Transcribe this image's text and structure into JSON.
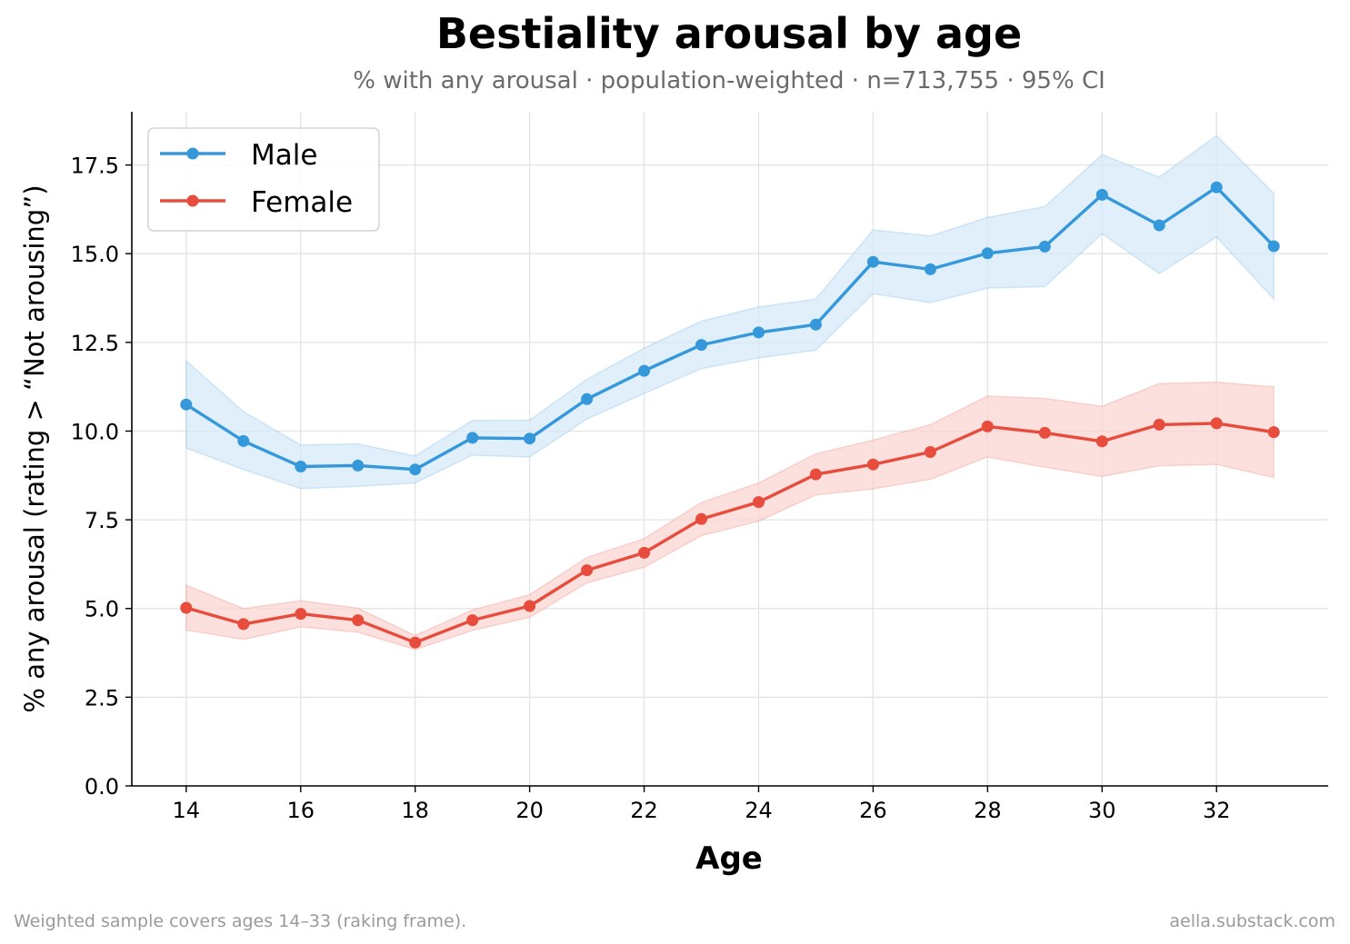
{
  "chart_data": {
    "type": "line",
    "title": "Bestiality arousal by age",
    "subtitle": "% with any arousal · population-weighted · n=713,755 · 95% CI",
    "xlabel": "Age",
    "ylabel": "% any arousal (rating > “Not arousing”)",
    "xlim": [
      13.05,
      33.95
    ],
    "ylim": [
      0,
      19
    ],
    "x_ticks": [
      14,
      16,
      18,
      20,
      22,
      24,
      26,
      28,
      30,
      32
    ],
    "x_tick_labels": [
      "14",
      "16",
      "18",
      "20",
      "22",
      "24",
      "26",
      "28",
      "30",
      "32"
    ],
    "y_ticks": [
      0,
      2.5,
      5,
      7.5,
      10,
      12.5,
      15,
      17.5
    ],
    "y_tick_labels": [
      "0.0",
      "2.5",
      "5.0",
      "7.5",
      "10.0",
      "12.5",
      "15.0",
      "17.5"
    ],
    "grid": true,
    "legend_position": "top-left",
    "x": [
      14,
      15,
      16,
      17,
      18,
      19,
      20,
      21,
      22,
      23,
      24,
      25,
      26,
      27,
      28,
      29,
      30,
      31,
      32,
      33
    ],
    "series": [
      {
        "name": "Male",
        "color": "#3498db",
        "band_color": "#d6e9f8",
        "values": [
          10.75,
          9.72,
          9.0,
          9.03,
          8.92,
          9.81,
          9.79,
          10.9,
          11.7,
          12.43,
          12.78,
          13.0,
          14.77,
          14.56,
          15.01,
          15.2,
          16.66,
          15.8,
          16.87,
          15.21
        ],
        "ci_low": [
          9.52,
          8.92,
          8.38,
          8.44,
          8.54,
          9.32,
          9.27,
          10.34,
          11.06,
          11.76,
          12.06,
          12.28,
          13.87,
          13.62,
          14.03,
          14.07,
          15.56,
          14.44,
          15.47,
          13.72
        ],
        "ci_high": [
          11.98,
          10.55,
          9.61,
          9.64,
          9.3,
          10.3,
          10.31,
          11.46,
          12.34,
          13.1,
          13.5,
          13.72,
          15.67,
          15.5,
          16.02,
          16.33,
          17.79,
          17.16,
          18.33,
          16.7
        ]
      },
      {
        "name": "Female",
        "color": "#e74c3c",
        "band_color": "#f9d6d2",
        "values": [
          5.02,
          4.56,
          4.85,
          4.67,
          4.04,
          4.67,
          5.07,
          6.08,
          6.57,
          7.52,
          8.0,
          8.78,
          9.06,
          9.41,
          10.13,
          9.95,
          9.71,
          10.18,
          10.22,
          9.97
        ],
        "ci_low": [
          4.39,
          4.13,
          4.48,
          4.33,
          3.84,
          4.38,
          4.75,
          5.72,
          6.16,
          7.05,
          7.46,
          8.2,
          8.37,
          8.64,
          9.27,
          8.98,
          8.72,
          9.02,
          9.06,
          8.69
        ],
        "ci_high": [
          5.66,
          5.0,
          5.22,
          5.01,
          4.24,
          4.96,
          5.39,
          6.44,
          6.97,
          7.99,
          8.54,
          9.36,
          9.75,
          10.18,
          10.99,
          10.92,
          10.7,
          11.34,
          11.38,
          11.25
        ]
      }
    ],
    "footer_left": "Weighted sample covers ages 14–33 (raking frame).",
    "footer_right": "aella.substack.com"
  }
}
